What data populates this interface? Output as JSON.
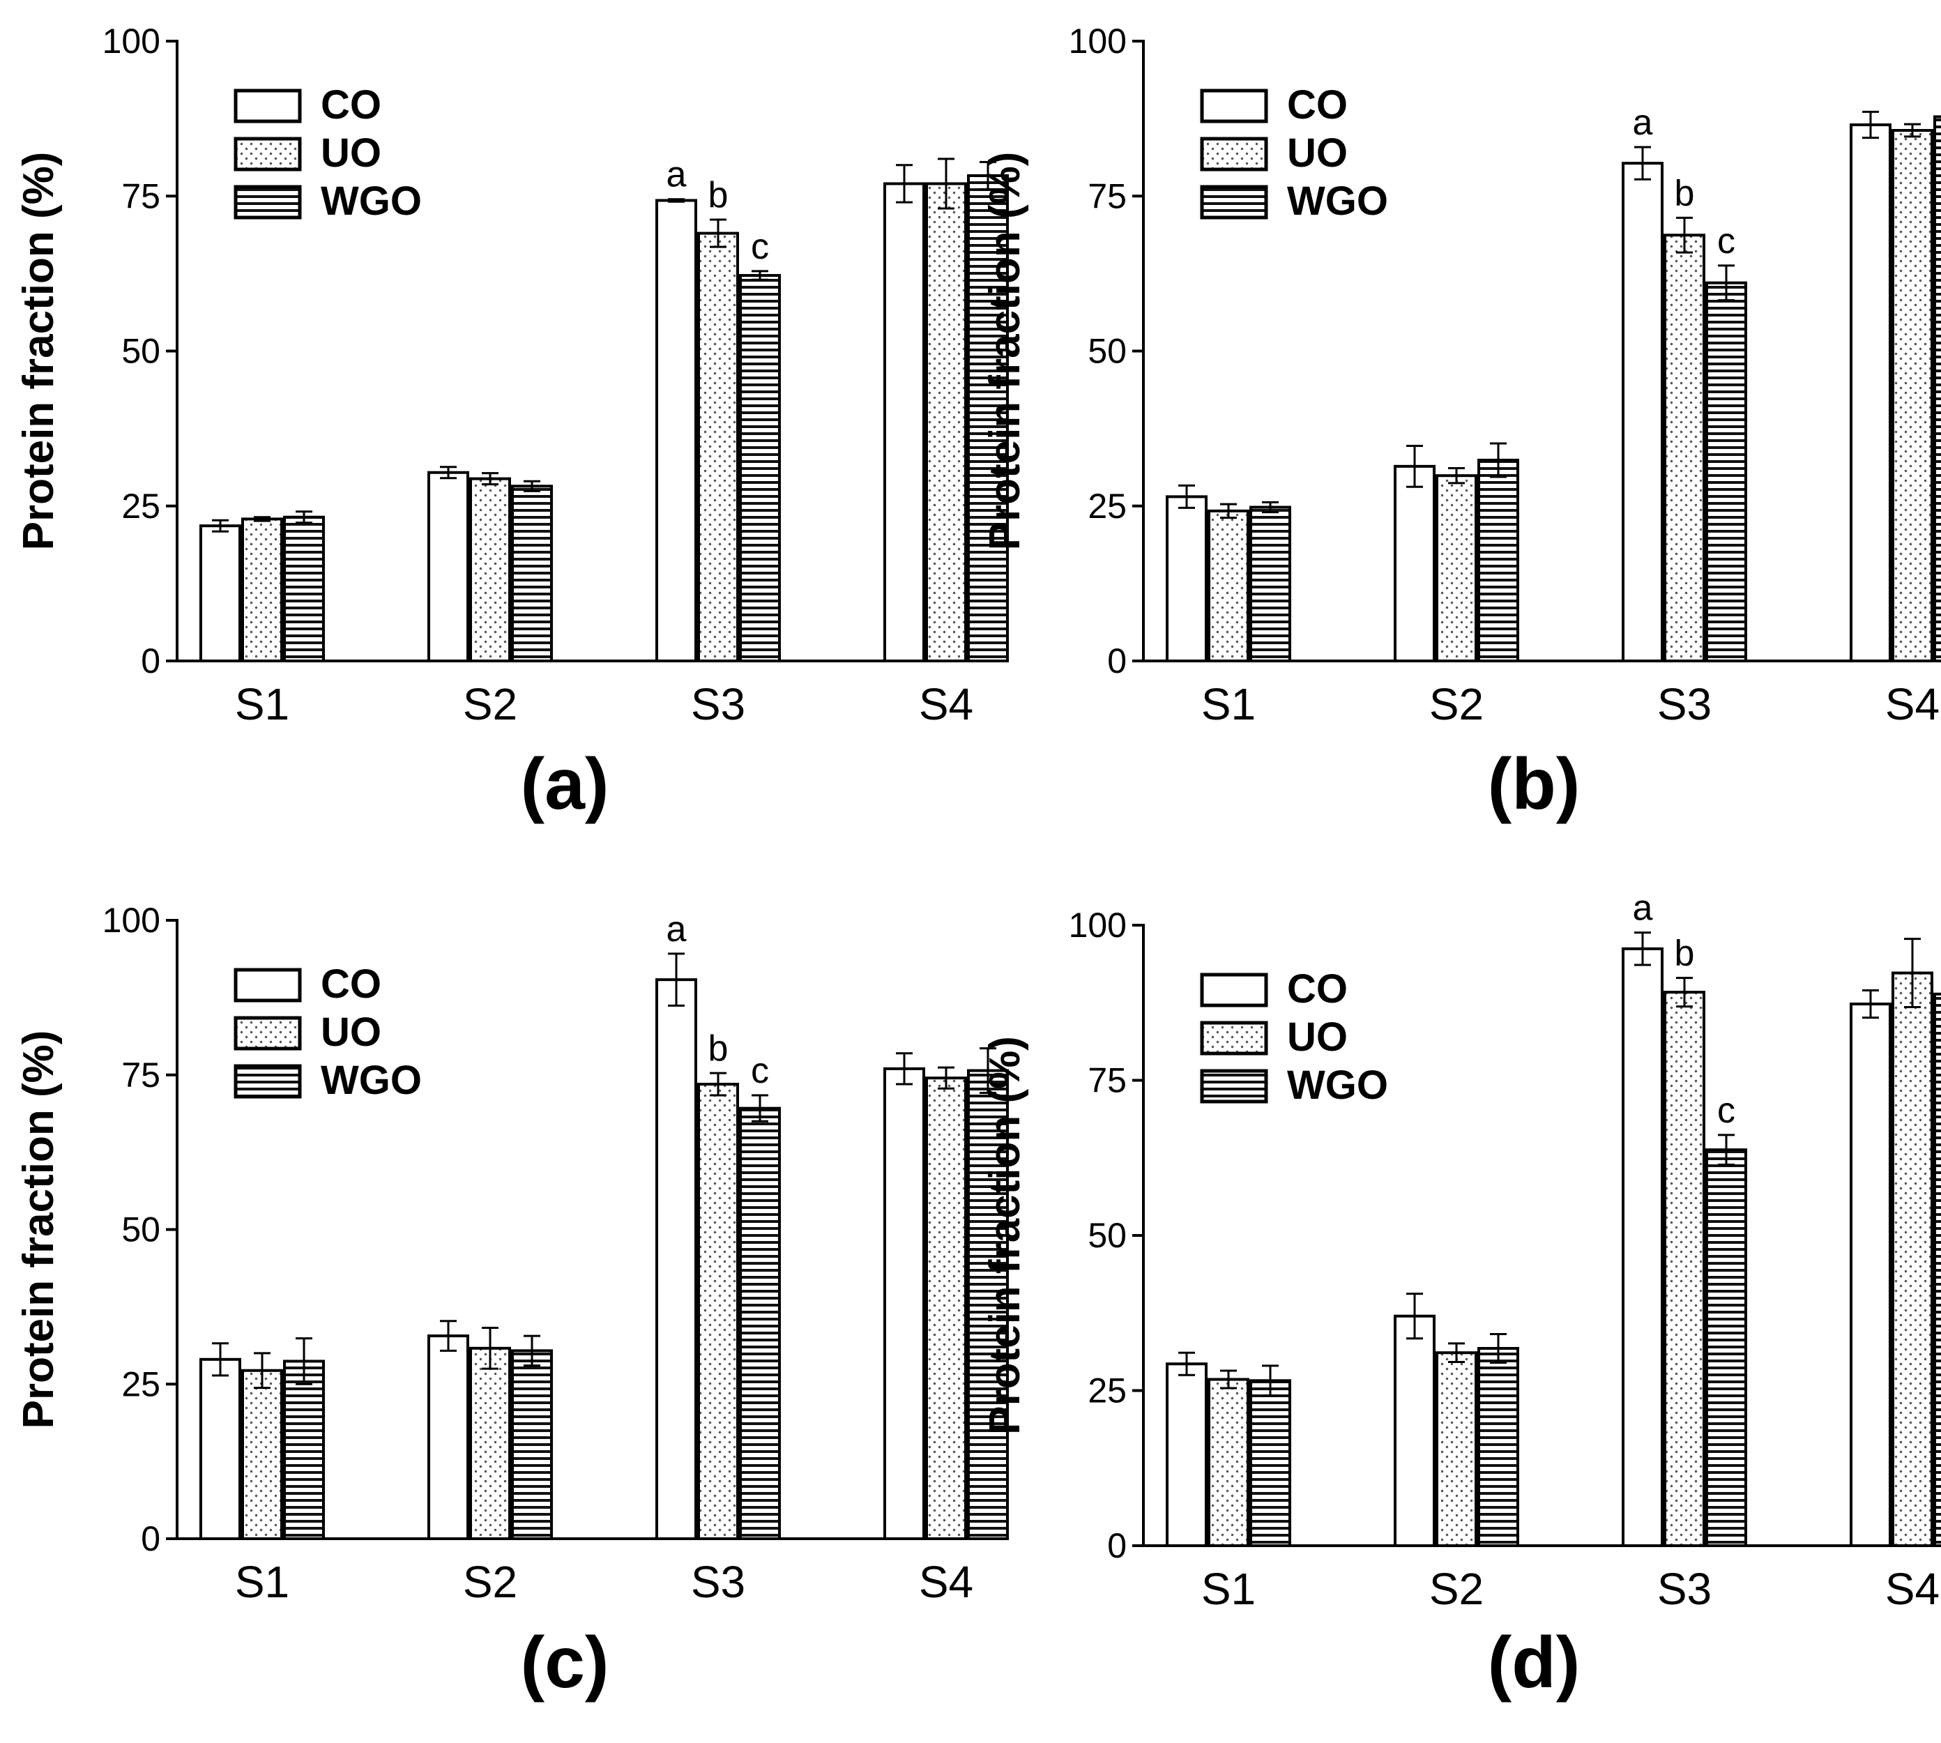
{
  "figure": {
    "series_names": [
      "CO",
      "UO",
      "WGO"
    ],
    "ylabel": "Protein fraction (%)",
    "categories": [
      "S1",
      "S2",
      "S3",
      "S4"
    ],
    "yticks": [
      "0",
      "25",
      "50",
      "75",
      "100"
    ]
  },
  "chart_data": [
    {
      "type": "bar",
      "panel": "(a)",
      "categories": [
        "S1",
        "S2",
        "S3",
        "S4"
      ],
      "ylabel": "Protein fraction (%)",
      "ylim": [
        0,
        100
      ],
      "legend": "top-left",
      "series": [
        {
          "name": "CO",
          "pattern": "open",
          "values": [
            21.8,
            30.4,
            74.3,
            77.0
          ],
          "errors": [
            0.9,
            0.9,
            0.2,
            3.0
          ]
        },
        {
          "name": "UO",
          "pattern": "dotted",
          "values": [
            22.9,
            29.4,
            69.0,
            77.0
          ],
          "errors": [
            0.3,
            0.9,
            2.2,
            4.0
          ]
        },
        {
          "name": "WGO",
          "pattern": "striped",
          "values": [
            23.2,
            28.2,
            62.2,
            78.3
          ],
          "errors": [
            0.9,
            0.8,
            0.7,
            2.2
          ]
        }
      ],
      "annotations": [
        {
          "category": "S3",
          "series": "CO",
          "text": "a"
        },
        {
          "category": "S3",
          "series": "UO",
          "text": "b"
        },
        {
          "category": "S3",
          "series": "WGO",
          "text": "c"
        }
      ]
    },
    {
      "type": "bar",
      "panel": "(b)",
      "categories": [
        "S1",
        "S2",
        "S3",
        "S4"
      ],
      "ylabel": "Protein fraction (%)",
      "ylim": [
        0,
        100
      ],
      "legend": "top-left",
      "series": [
        {
          "name": "CO",
          "pattern": "open",
          "values": [
            26.5,
            31.4,
            80.3,
            86.5
          ],
          "errors": [
            1.8,
            3.3,
            2.6,
            2.1
          ]
        },
        {
          "name": "UO",
          "pattern": "dotted",
          "values": [
            24.2,
            29.9,
            68.7,
            85.6
          ],
          "errors": [
            1.1,
            1.2,
            2.8,
            1.0
          ]
        },
        {
          "name": "WGO",
          "pattern": "striped",
          "values": [
            24.8,
            32.4,
            61.0,
            87.8
          ],
          "errors": [
            0.8,
            2.7,
            2.8,
            2.2
          ]
        }
      ],
      "annotations": [
        {
          "category": "S3",
          "series": "CO",
          "text": "a"
        },
        {
          "category": "S3",
          "series": "UO",
          "text": "b"
        },
        {
          "category": "S3",
          "series": "WGO",
          "text": "c"
        }
      ]
    },
    {
      "type": "bar",
      "panel": "(c)",
      "categories": [
        "S1",
        "S2",
        "S3",
        "S4"
      ],
      "ylabel": "Protein fraction (%)",
      "ylim": [
        0,
        100
      ],
      "legend": "top-left",
      "series": [
        {
          "name": "CO",
          "pattern": "open",
          "values": [
            29.0,
            32.8,
            90.4,
            76.0
          ],
          "errors": [
            2.6,
            2.4,
            4.2,
            2.5
          ]
        },
        {
          "name": "UO",
          "pattern": "dotted",
          "values": [
            27.2,
            30.8,
            73.5,
            74.5
          ],
          "errors": [
            2.8,
            3.3,
            1.8,
            1.7
          ]
        },
        {
          "name": "WGO",
          "pattern": "striped",
          "values": [
            28.7,
            30.4,
            69.6,
            75.7
          ],
          "errors": [
            3.7,
            2.4,
            2.1,
            3.6
          ]
        }
      ],
      "annotations": [
        {
          "category": "S3",
          "series": "CO",
          "text": "a"
        },
        {
          "category": "S3",
          "series": "UO",
          "text": "b"
        },
        {
          "category": "S3",
          "series": "WGO",
          "text": "c"
        }
      ]
    },
    {
      "type": "bar",
      "panel": "(d)",
      "categories": [
        "S1",
        "S2",
        "S3",
        "S4"
      ],
      "ylabel": "Protein fraction (%)",
      "ylim": [
        0,
        100
      ],
      "legend": "top-left",
      "series": [
        {
          "name": "CO",
          "pattern": "open",
          "values": [
            29.3,
            37.0,
            96.2,
            87.3
          ],
          "errors": [
            1.8,
            3.6,
            2.6,
            2.2
          ]
        },
        {
          "name": "UO",
          "pattern": "dotted",
          "values": [
            26.8,
            31.1,
            89.2,
            92.3
          ],
          "errors": [
            1.4,
            1.5,
            2.3,
            5.5
          ]
        },
        {
          "name": "WGO",
          "pattern": "striped",
          "values": [
            26.6,
            31.8,
            63.8,
            88.9
          ],
          "errors": [
            2.4,
            2.3,
            2.4,
            3.1
          ]
        }
      ],
      "annotations": [
        {
          "category": "S3",
          "series": "CO",
          "text": "a"
        },
        {
          "category": "S3",
          "series": "UO",
          "text": "b"
        },
        {
          "category": "S3",
          "series": "WGO",
          "text": "c"
        }
      ]
    }
  ]
}
